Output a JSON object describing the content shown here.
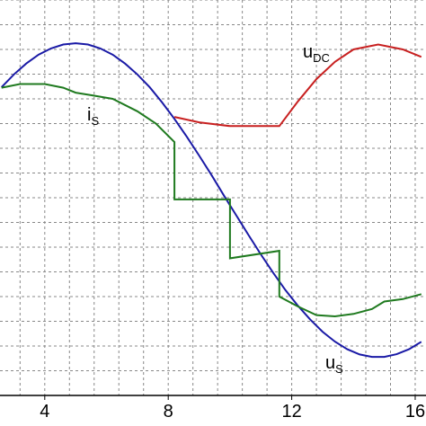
{
  "chart_data": {
    "type": "line",
    "xlim": [
      2.55,
      16.35
    ],
    "ylim": [
      0,
      16
    ],
    "xticks": [
      4,
      8,
      12,
      16
    ],
    "xgrid": [
      3.2,
      4,
      4.8,
      5.6,
      6.4,
      7.2,
      8,
      8.8,
      9.6,
      10.4,
      11.2,
      12,
      12.8,
      13.6,
      14.4,
      15.2,
      16
    ],
    "yticks": [
      1,
      2,
      3,
      4,
      5,
      6,
      7,
      8,
      9,
      10,
      11,
      12,
      13,
      14,
      15,
      16
    ],
    "grid": true,
    "series": [
      {
        "name": "u",
        "subscript": "S",
        "color": "#1a1aa6",
        "x": [
          2.6,
          3.0,
          3.4,
          3.8,
          4.2,
          4.6,
          5.0,
          5.4,
          5.8,
          6.2,
          6.6,
          7.0,
          7.4,
          7.8,
          8.2,
          8.6,
          9.0,
          9.4,
          9.8,
          10.2,
          10.6,
          11.0,
          11.4,
          11.8,
          12.2,
          12.6,
          13.0,
          13.4,
          13.8,
          14.2,
          14.6,
          15.0,
          15.4,
          15.8,
          16.2
        ],
        "values": [
          12.47,
          12.99,
          13.43,
          13.79,
          14.04,
          14.2,
          14.25,
          14.2,
          14.04,
          13.79,
          13.43,
          12.99,
          12.47,
          11.86,
          11.19,
          10.47,
          9.71,
          8.92,
          8.1,
          7.29,
          6.49,
          5.71,
          4.96,
          4.26,
          3.63,
          3.07,
          2.58,
          2.18,
          1.87,
          1.66,
          1.56,
          1.56,
          1.67,
          1.87,
          2.17
        ]
      },
      {
        "name": "u",
        "subscript": "DC",
        "color": "#c82020",
        "x": [
          8.2,
          9,
          10,
          11.6,
          12.2,
          12.8,
          13.4,
          14,
          14.8,
          15.6,
          16.2
        ],
        "values": [
          11.27,
          11.05,
          10.9,
          10.9,
          11.9,
          12.8,
          13.5,
          14.0,
          14.2,
          14.0,
          13.7
        ]
      },
      {
        "name": "i",
        "subscript": "S",
        "color": "#1f7a1f",
        "x": [
          2.6,
          3.2,
          4,
          4.6,
          5,
          5.5,
          6.2,
          7,
          7.6,
          8.2,
          8.2,
          10,
          10,
          11.6,
          11.6,
          12.2,
          12.8,
          13.4,
          14,
          14.6,
          15,
          15.6,
          16.2
        ],
        "values": [
          12.45,
          12.6,
          12.6,
          12.45,
          12.25,
          12.15,
          12.0,
          11.5,
          11.0,
          10.25,
          7.93,
          7.93,
          5.55,
          5.85,
          4.0,
          3.6,
          3.25,
          3.2,
          3.3,
          3.5,
          3.8,
          3.9,
          4.1
        ]
      }
    ]
  }
}
